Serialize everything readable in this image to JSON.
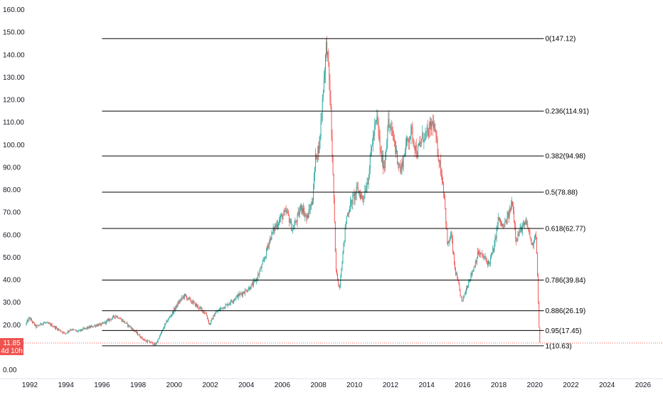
{
  "colors": {
    "up": "#26a69a",
    "down": "#ef5350",
    "fib_line": "#000000",
    "last_price": "#ef5350",
    "axis_text": "#131722"
  },
  "price_axis": {
    "ticks": [
      "0.00",
      "10.00",
      "20.00",
      "30.00",
      "40.00",
      "50.00",
      "60.00",
      "70.00",
      "80.00",
      "90.00",
      "100.00",
      "110.00",
      "120.00",
      "130.00",
      "140.00",
      "150.00",
      "160.00"
    ],
    "range": [
      0,
      160
    ]
  },
  "time_axis": {
    "ticks": [
      "1992",
      "1994",
      "1996",
      "1998",
      "2000",
      "2002",
      "2004",
      "2006",
      "2008",
      "2010",
      "2012",
      "2014",
      "2016",
      "2018",
      "2020",
      "2022",
      "2024",
      "2026"
    ],
    "range": [
      1991.8,
      2027.3
    ]
  },
  "last_price": {
    "value": 11.85,
    "label": "11.85",
    "countdown": "4d 10h"
  },
  "fibonacci": {
    "start_year": 1996.0,
    "end_year": 2020.5,
    "levels": [
      {
        "label": "0(147.12)",
        "price": 147.12
      },
      {
        "label": "0.236(114.91)",
        "price": 114.91
      },
      {
        "label": "0.382(94.98)",
        "price": 94.98
      },
      {
        "label": "0.5(78.88)",
        "price": 78.88
      },
      {
        "label": "0.618(62.77)",
        "price": 62.77
      },
      {
        "label": "0.786(39.84)",
        "price": 39.84
      },
      {
        "label": "0.886(26.19)",
        "price": 26.19
      },
      {
        "label": "0.95(17.45)",
        "price": 17.45
      },
      {
        "label": "1(10.63)",
        "price": 10.63
      }
    ]
  },
  "chart_data": {
    "type": "line",
    "style": "candlestick",
    "title": "",
    "xlabel": "",
    "ylabel": "",
    "ylim": [
      0,
      160
    ],
    "xlim": [
      1991.8,
      2027.3
    ],
    "grid": false,
    "legend": "none",
    "x": [
      1991.8,
      1992.0,
      1992.4,
      1992.8,
      1993.2,
      1993.6,
      1994.0,
      1994.3,
      1994.7,
      1995.0,
      1995.4,
      1995.8,
      1996.0,
      1996.4,
      1996.8,
      1997.0,
      1997.3,
      1997.6,
      1998.0,
      1998.4,
      1998.8,
      1999.0,
      1999.3,
      1999.6,
      2000.0,
      2000.3,
      2000.6,
      2000.9,
      2001.2,
      2001.5,
      2001.8,
      2002.0,
      2002.3,
      2002.6,
      2003.0,
      2003.3,
      2003.6,
      2004.0,
      2004.3,
      2004.6,
      2005.0,
      2005.3,
      2005.6,
      2006.0,
      2006.3,
      2006.6,
      2006.9,
      2007.1,
      2007.4,
      2007.7,
      2007.9,
      2008.1,
      2008.3,
      2008.5,
      2008.7,
      2008.9,
      2009.0,
      2009.2,
      2009.4,
      2009.6,
      2009.9,
      2010.2,
      2010.5,
      2010.8,
      2011.0,
      2011.3,
      2011.5,
      2011.7,
      2011.9,
      2012.2,
      2012.4,
      2012.6,
      2012.9,
      2013.2,
      2013.5,
      2013.8,
      2014.1,
      2014.4,
      2014.6,
      2014.8,
      2015.0,
      2015.2,
      2015.4,
      2015.6,
      2015.8,
      2016.0,
      2016.2,
      2016.4,
      2016.6,
      2016.9,
      2017.2,
      2017.5,
      2017.8,
      2018.0,
      2018.3,
      2018.6,
      2018.8,
      2019.0,
      2019.3,
      2019.6,
      2019.9,
      2020.1,
      2020.2,
      2020.3
    ],
    "y": [
      20,
      23,
      19,
      21,
      20,
      18,
      16,
      18,
      17,
      18,
      19,
      20,
      20,
      22,
      24,
      23,
      21,
      19,
      16,
      13,
      12,
      11,
      16,
      21,
      26,
      30,
      33,
      31,
      29,
      27,
      25,
      20,
      25,
      27,
      29,
      31,
      33,
      35,
      37,
      40,
      48,
      57,
      63,
      68,
      70,
      62,
      68,
      73,
      67,
      75,
      95,
      100,
      125,
      146,
      120,
      75,
      45,
      36,
      52,
      68,
      75,
      80,
      76,
      85,
      100,
      112,
      95,
      90,
      110,
      103,
      95,
      88,
      100,
      106,
      96,
      103,
      105,
      110,
      100,
      90,
      80,
      55,
      60,
      45,
      38,
      30,
      35,
      40,
      44,
      52,
      50,
      47,
      55,
      67,
      63,
      69,
      75,
      58,
      63,
      65,
      55,
      62,
      40,
      11.85
    ]
  }
}
